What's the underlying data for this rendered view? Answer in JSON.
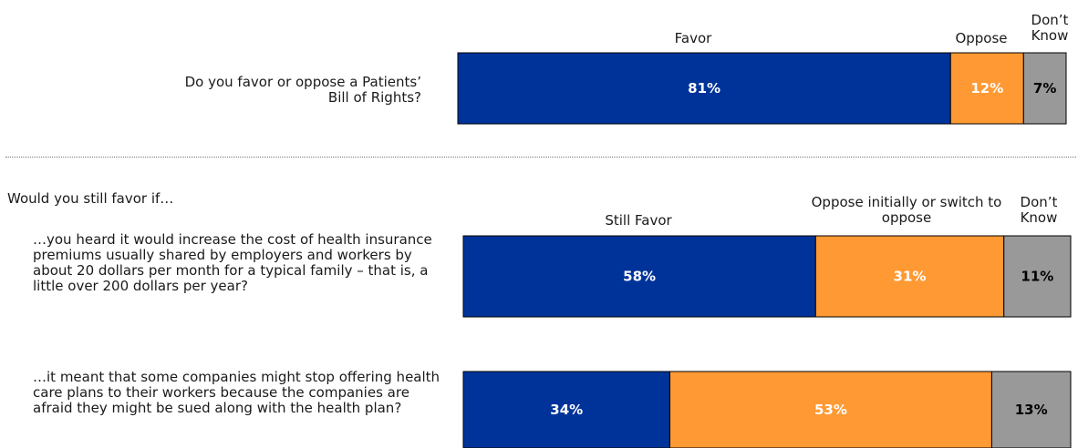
{
  "colors": {
    "favor": "#00339a",
    "oppose": "#ff9933",
    "dont_know": "#999999"
  },
  "top": {
    "question": "Do you favor or oppose a Patients’ Bill of Rights?",
    "headers": {
      "favor": "Favor",
      "oppose": "Oppose",
      "dont_know": "Don’t Know"
    }
  },
  "section": {
    "heading": "Would you still favor if…",
    "headers": {
      "favor": "Still Favor",
      "oppose": "Oppose initially or switch to oppose",
      "dont_know": "Don’t Know"
    },
    "items": [
      {
        "question": "…you heard it would increase the cost of health insurance premiums usually shared by employers and workers by about 20 dollars per month for a typical family – that is, a little over 200 dollars per year?"
      },
      {
        "question": "…it meant that some companies might stop offering health care plans to their workers because the companies are afraid they might be sued along with the health plan?"
      }
    ]
  },
  "chart_data": {
    "type": "bar",
    "orientation": "horizontal-stacked-100",
    "bars": [
      {
        "label": "Do you favor or oppose a Patients’ Bill of Rights?",
        "segments": [
          {
            "name": "Favor",
            "value": 81,
            "label": "81%"
          },
          {
            "name": "Oppose",
            "value": 12,
            "label": "12%"
          },
          {
            "name": "Don’t Know",
            "value": 7,
            "label": "7%"
          }
        ]
      },
      {
        "label": "…you heard it would increase the cost of health insurance premiums usually shared by employers and workers by about 20 dollars per month for a typical family – that is, a little over 200 dollars per year?",
        "segments": [
          {
            "name": "Still Favor",
            "value": 58,
            "label": "58%"
          },
          {
            "name": "Oppose initially or switch to oppose",
            "value": 31,
            "label": "31%"
          },
          {
            "name": "Don’t Know",
            "value": 11,
            "label": "11%"
          }
        ]
      },
      {
        "label": "…it meant that some companies might stop offering health care plans to their workers because the companies are afraid they might be sued along with the health plan?",
        "segments": [
          {
            "name": "Still Favor",
            "value": 34,
            "label": "34%"
          },
          {
            "name": "Oppose initially or switch to oppose",
            "value": 53,
            "label": "53%"
          },
          {
            "name": "Don’t Know",
            "value": 13,
            "label": "13%"
          }
        ]
      }
    ]
  }
}
